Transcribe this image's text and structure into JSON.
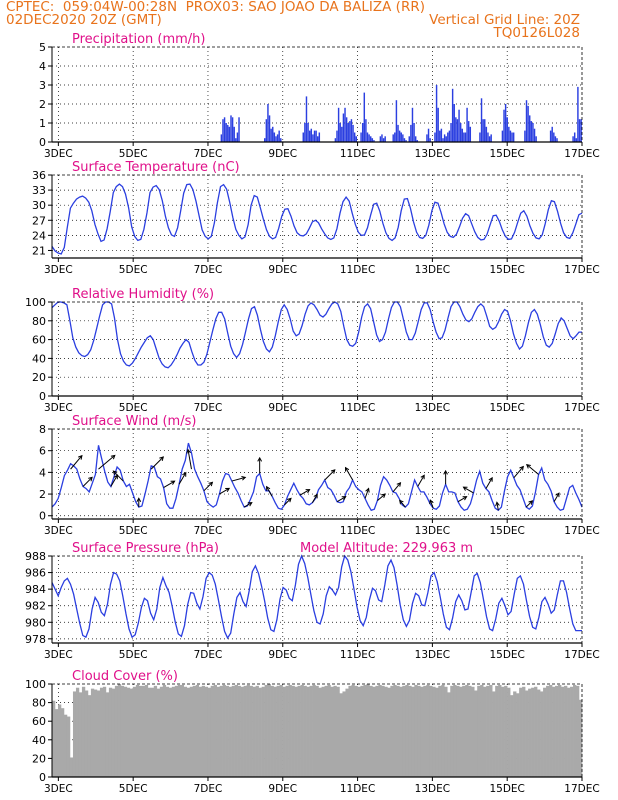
{
  "header": {
    "line1_left": "CPTEC:  059:04W-00:28N  PROX03: SAO JOAO DA BALIZA (RR)",
    "line2_left": "02DEC2020 20Z (GMT)",
    "line2_right": "Vertical Grid Line: 20Z",
    "line3_right": "TQ0126L028"
  },
  "x_ticks": [
    "3DEC",
    "5DEC",
    "7DEC",
    "9DEC",
    "11DEC",
    "13DEC",
    "15DEC",
    "17DEC"
  ],
  "colors": {
    "header": "#e8731c",
    "title": "#e0108a",
    "series": "#2b3fe0",
    "cloud": "#a9a9a9",
    "arrow": "#000000"
  },
  "chart_data": [
    {
      "type": "bar",
      "title": "Precipitation (mm/h)",
      "ylim": [
        0,
        5
      ],
      "yticks": [
        0,
        1,
        2,
        3,
        4,
        5
      ],
      "x_range_days": [
        2.83,
        17.0
      ],
      "values": [
        0,
        0,
        0,
        0,
        0,
        0,
        0,
        0,
        0,
        0,
        0,
        0,
        0,
        0,
        0,
        0,
        0,
        0,
        0,
        0,
        0,
        0,
        0,
        0,
        0,
        0,
        0,
        0,
        0,
        0,
        0,
        0,
        0,
        0,
        0,
        0,
        0,
        0,
        0,
        0,
        0,
        0,
        0,
        0,
        0,
        0,
        0,
        0,
        0,
        0,
        0,
        0,
        0,
        0,
        0,
        0,
        0,
        0,
        0,
        0,
        0,
        0,
        0,
        0,
        0,
        0,
        0,
        0,
        0,
        0,
        0,
        0,
        0,
        0,
        0,
        0,
        0,
        0,
        0,
        0,
        0,
        0,
        0,
        0,
        0,
        0,
        0,
        0,
        0,
        0,
        0,
        0,
        0,
        0,
        0,
        0,
        0,
        0,
        0,
        0,
        0,
        0,
        0,
        0,
        0,
        0.4,
        1.2,
        1.3,
        1.0,
        0.9,
        0.8,
        1.4,
        1.3,
        0.8,
        0.2,
        0.5,
        1.3,
        0,
        0,
        0,
        0,
        0,
        0,
        0,
        0,
        0,
        0,
        0,
        0,
        0,
        0,
        0,
        0.2,
        1.2,
        2.0,
        1.4,
        0.7,
        0.8,
        0.5,
        0.3,
        0.4,
        0.6,
        0.2,
        0,
        0,
        0,
        0,
        0,
        0,
        0,
        0,
        0,
        0,
        0,
        0,
        0,
        0.5,
        1.0,
        2.4,
        1.0,
        0.6,
        0.7,
        0.4,
        0.6,
        0.6,
        0.3,
        0.5,
        0,
        0,
        0,
        0,
        0,
        0,
        0,
        0,
        0,
        0.2,
        0.6,
        1.8,
        1.0,
        0.8,
        1.5,
        1.8,
        1.3,
        1.0,
        1.1,
        1.2,
        0.9,
        0.5,
        0.3,
        0,
        0,
        0.5,
        1.0,
        2.6,
        1.2,
        0.5,
        0.4,
        0.3,
        0.2,
        0.1,
        0,
        0,
        0,
        0.3,
        0.4,
        0.2,
        0.3,
        0,
        0,
        0,
        0,
        0.4,
        0.5,
        2.2,
        0.9,
        0.6,
        0.5,
        0.4,
        0.2,
        0.1,
        0,
        0.3,
        0.9,
        1.8,
        1.0,
        0.3,
        0.1,
        0,
        0,
        0,
        0,
        0,
        0.4,
        0.7,
        0.2,
        0,
        0,
        0.5,
        3.0,
        1.8,
        0.6,
        0.7,
        0.2,
        0.4,
        0.3,
        0.5,
        0.6,
        1.0,
        2.8,
        2.0,
        1.3,
        1.2,
        1.7,
        1.0,
        0.7,
        0.5,
        0.5,
        1.8,
        1.1,
        0.8,
        0,
        0,
        0,
        0,
        0,
        0.5,
        2.3,
        1.2,
        1.2,
        0.8,
        0.5,
        0.3,
        0.4,
        0,
        0,
        0,
        0,
        0,
        0,
        0.6,
        1.7,
        2.0,
        1.3,
        0.8,
        0.6,
        0.5,
        0.5,
        0,
        0,
        0,
        0,
        0,
        0,
        0.6,
        2.2,
        1.9,
        1.4,
        1.1,
        1.0,
        0.7,
        0.3,
        0,
        0,
        0,
        0,
        0,
        0,
        0,
        0,
        0.6,
        0.8,
        0.5,
        0.3,
        0.2,
        0,
        0,
        0,
        0,
        0,
        0,
        0,
        0,
        0,
        0.3,
        0.5,
        0.2,
        2.9,
        1.2,
        1.2
      ]
    },
    {
      "type": "line",
      "title": "Surface Temperature (nC)",
      "ylim": [
        19.5,
        36
      ],
      "yticks": [
        21,
        24,
        27,
        30,
        33,
        36
      ],
      "x_range_days": [
        2.83,
        17.0
      ],
      "values": [
        21.8,
        20.9,
        20.5,
        20.3,
        21.6,
        25.6,
        29.4,
        30.4,
        31.2,
        31.6,
        31.8,
        31.4,
        30.6,
        28.9,
        26.2,
        24.3,
        22.8,
        23.1,
        25.3,
        28.7,
        32.5,
        33.7,
        34.2,
        33.7,
        32.2,
        29.5,
        25.7,
        23.8,
        23.0,
        23.2,
        25.2,
        28.5,
        32.5,
        33.6,
        33.9,
        33.1,
        30.9,
        27.8,
        25.5,
        24.1,
        23.8,
        25.5,
        28.9,
        32.4,
        34.1,
        34.2,
        33.1,
        30.8,
        27.9,
        25.1,
        23.8,
        23.3,
        23.8,
        26.5,
        30.5,
        33.7,
        34.1,
        33.2,
        30.6,
        27.6,
        25.2,
        24.0,
        23.3,
        23.7,
        26.1,
        30.0,
        31.9,
        31.6,
        29.5,
        27.2,
        25.1,
        23.8,
        23.3,
        23.6,
        25.4,
        27.8,
        29.2,
        29.3,
        27.8,
        25.9,
        24.5,
        24.0,
        23.9,
        24.3,
        25.4,
        26.7,
        27.0,
        26.5,
        25.3,
        24.3,
        23.5,
        23.2,
        23.5,
        25.3,
        28.4,
        30.7,
        31.6,
        30.8,
        28.4,
        26.2,
        24.6,
        24.0,
        24.1,
        25.5,
        28.0,
        30.2,
        30.4,
        28.8,
        26.4,
        24.5,
        23.4,
        23.0,
        23.5,
        25.6,
        28.9,
        31.2,
        31.3,
        29.4,
        26.7,
        24.6,
        23.6,
        23.4,
        24.0,
        26.0,
        28.9,
        30.6,
        30.4,
        28.5,
        26.3,
        24.6,
        23.8,
        23.6,
        24.2,
        25.7,
        27.4,
        28.3,
        27.9,
        26.3,
        24.7,
        23.6,
        23.1,
        23.2,
        24.2,
        26.1,
        27.9,
        28.0,
        26.8,
        25.1,
        23.8,
        23.2,
        23.3,
        24.6,
        26.6,
        28.4,
        28.9,
        27.8,
        25.9,
        24.4,
        23.5,
        23.3,
        24.1,
        26.3,
        29.1,
        30.9,
        30.7,
        28.8,
        26.4,
        24.5,
        23.6,
        23.4,
        24.5,
        26.3,
        28.1,
        28.4
      ]
    },
    {
      "type": "line",
      "title": "Relative Humidity (%)",
      "ylim": [
        0,
        100
      ],
      "yticks": [
        0,
        20,
        40,
        60,
        80,
        100
      ],
      "x_range_days": [
        2.83,
        17.0
      ],
      "values": [
        94,
        97,
        100,
        100,
        99,
        97,
        80,
        62,
        52,
        46,
        43,
        42,
        44,
        49,
        59,
        72,
        85,
        97,
        100,
        100,
        98,
        83,
        60,
        45,
        37,
        33,
        32,
        35,
        40,
        46,
        52,
        57,
        62,
        64,
        60,
        50,
        40,
        34,
        31,
        30,
        33,
        38,
        44,
        51,
        56,
        60,
        57,
        47,
        38,
        33,
        33,
        36,
        44,
        57,
        70,
        82,
        89,
        89,
        82,
        67,
        53,
        45,
        41,
        45,
        55,
        68,
        82,
        93,
        95,
        86,
        71,
        58,
        50,
        47,
        52,
        64,
        79,
        92,
        97,
        92,
        82,
        69,
        64,
        66,
        75,
        87,
        96,
        99,
        97,
        92,
        86,
        84,
        87,
        93,
        98,
        100,
        98,
        90,
        74,
        60,
        54,
        53,
        56,
        68,
        84,
        95,
        98,
        93,
        79,
        65,
        58,
        60,
        68,
        82,
        94,
        100,
        100,
        95,
        82,
        68,
        60,
        60,
        67,
        79,
        92,
        99,
        99,
        92,
        79,
        68,
        61,
        62,
        70,
        83,
        95,
        100,
        100,
        95,
        87,
        81,
        79,
        82,
        89,
        95,
        98,
        95,
        85,
        74,
        71,
        73,
        79,
        87,
        92,
        90,
        80,
        66,
        56,
        50,
        53,
        64,
        78,
        89,
        92,
        87,
        76,
        63,
        54,
        52,
        56,
        66,
        77,
        83,
        80,
        72,
        64,
        61,
        64,
        68,
        68
      ]
    },
    {
      "type": "line",
      "title": "Surface Wind (m/s)",
      "ylim": [
        -0.3,
        8
      ],
      "yticks": [
        0,
        2,
        4,
        6,
        8
      ],
      "x_range_days": [
        2.83,
        17.0
      ],
      "values": [
        0.8,
        1.1,
        1.6,
        2.6,
        3.7,
        4.2,
        4.8,
        4.6,
        4.3,
        3.4,
        2.7,
        2.5,
        2.2,
        3.0,
        3.8,
        6.5,
        5.3,
        4.1,
        3.1,
        2.7,
        3.6,
        4.5,
        4.2,
        3.2,
        2.7,
        2.9,
        2.1,
        1.3,
        0.8,
        0.9,
        2.0,
        3.2,
        4.6,
        4.5,
        3.6,
        3.4,
        2.6,
        1.1,
        0.7,
        0.7,
        1.6,
        2.9,
        4.3,
        5.1,
        6.7,
        5.8,
        4.3,
        3.6,
        3.0,
        2.3,
        1.3,
        1.0,
        0.8,
        1.0,
        2.0,
        3.2,
        3.9,
        3.8,
        3.2,
        2.6,
        2.1,
        1.4,
        0.8,
        0.9,
        1.5,
        2.2,
        3.6,
        3.9,
        2.9,
        2.3,
        2.3,
        1.8,
        1.2,
        0.7,
        0.6,
        1.0,
        1.8,
        2.4,
        3.0,
        2.4,
        1.9,
        1.6,
        1.1,
        1.0,
        1.2,
        1.6,
        2.4,
        2.8,
        3.3,
        2.6,
        2.4,
        1.9,
        1.3,
        1.2,
        1.3,
        2.2,
        2.6,
        3.3,
        2.7,
        2.4,
        2.2,
        1.6,
        1.0,
        0.5,
        0.6,
        1.4,
        2.8,
        3.6,
        3.3,
        2.8,
        2.2,
        2.1,
        1.6,
        1.0,
        0.8,
        1.1,
        2.2,
        3.3,
        2.7,
        2.2,
        2.2,
        1.7,
        1.1,
        0.7,
        0.6,
        0.9,
        2.1,
        2.9,
        2.2,
        2.2,
        2.1,
        1.3,
        0.8,
        0.5,
        0.6,
        1.1,
        2.1,
        3.3,
        4.1,
        3.0,
        2.5,
        2.2,
        1.4,
        0.7,
        0.5,
        0.8,
        2.3,
        3.6,
        4.2,
        3.5,
        2.8,
        2.4,
        1.6,
        0.8,
        0.6,
        0.9,
        2.2,
        3.8,
        4.4,
        3.3,
        2.9,
        2.3,
        1.3,
        0.8,
        0.5,
        0.6,
        1.6,
        2.6,
        2.8,
        2.1,
        1.5,
        0.8
      ]
    },
    {
      "type": "line",
      "title": "Surface Pressure (hPa)",
      "annotation": "Model Altitude: 229.963 m",
      "ylim": [
        977.5,
        988
      ],
      "yticks": [
        978,
        980,
        982,
        984,
        986,
        988
      ],
      "x_range_days": [
        2.83,
        17.0
      ],
      "values": [
        984.8,
        984.0,
        983.2,
        984.2,
        985.0,
        985.3,
        984.6,
        983.4,
        981.6,
        979.9,
        978.4,
        978.2,
        979.2,
        981.6,
        983.0,
        982.4,
        981.2,
        980.8,
        982.2,
        984.6,
        986.0,
        985.8,
        985.0,
        983.1,
        981.0,
        979.2,
        978.2,
        978.5,
        979.9,
        981.8,
        982.9,
        982.6,
        981.1,
        980.3,
        981.6,
        984.2,
        985.4,
        984.4,
        983.6,
        981.9,
        980.0,
        978.6,
        978.3,
        979.6,
        982.1,
        983.6,
        983.5,
        982.3,
        981.6,
        983.1,
        985.3,
        986.0,
        985.7,
        984.6,
        982.7,
        980.7,
        978.9,
        978.1,
        978.7,
        981.0,
        983.0,
        983.6,
        982.5,
        981.9,
        983.8,
        986.1,
        986.8,
        985.9,
        984.4,
        982.6,
        980.5,
        979.1,
        978.9,
        980.3,
        982.8,
        984.2,
        983.9,
        982.9,
        982.6,
        984.5,
        987.0,
        988.0,
        987.1,
        985.4,
        983.4,
        981.4,
        980.0,
        979.8,
        981.0,
        983.2,
        984.3,
        983.9,
        983.3,
        984.2,
        986.7,
        988.0,
        987.5,
        986.1,
        984.0,
        981.8,
        980.2,
        979.6,
        980.6,
        982.7,
        984.1,
        983.8,
        982.7,
        982.5,
        984.5,
        986.8,
        987.5,
        986.6,
        984.5,
        982.1,
        980.3,
        979.5,
        980.2,
        982.3,
        983.5,
        983.2,
        982.1,
        982.0,
        983.6,
        985.6,
        986.0,
        984.9,
        983.0,
        981.0,
        979.4,
        979.1,
        980.5,
        982.5,
        983.3,
        982.6,
        981.5,
        981.6,
        983.6,
        985.6,
        985.9,
        984.8,
        982.8,
        980.7,
        979.2,
        979.0,
        980.4,
        982.3,
        982.9,
        982.0,
        980.9,
        981.3,
        983.4,
        985.3,
        985.6,
        984.6,
        982.6,
        980.7,
        979.4,
        979.2,
        980.6,
        982.5,
        983.0,
        982.2,
        981.1,
        981.5,
        983.3,
        985.0,
        985.0,
        983.6,
        981.6,
        979.8,
        979.0,
        979.0,
        979.0
      ]
    },
    {
      "type": "area",
      "title": "Cloud Cover (%)",
      "ylim": [
        0,
        100
      ],
      "yticks": [
        0,
        20,
        40,
        60,
        80,
        100
      ],
      "x_range_days": [
        2.83,
        17.0
      ],
      "values": [
        82,
        73,
        78,
        74,
        67,
        65,
        21,
        92,
        96,
        91,
        97,
        93,
        88,
        95,
        94,
        93,
        96,
        97,
        91,
        96,
        95,
        98,
        100,
        98,
        97,
        96,
        95,
        97,
        99,
        98,
        98,
        99,
        96,
        96,
        98,
        95,
        97,
        99,
        97,
        96,
        97,
        98,
        99,
        99,
        97,
        96,
        97,
        98,
        99,
        97,
        98,
        97,
        96,
        98,
        99,
        97,
        98,
        99,
        98,
        97,
        98,
        99,
        98,
        97,
        98,
        99,
        98,
        97,
        98,
        96,
        97,
        99,
        100,
        98,
        97,
        98,
        99,
        97,
        98,
        99,
        98,
        97,
        98,
        99,
        98,
        97,
        98,
        99,
        98,
        96,
        97,
        98,
        99,
        97,
        98,
        97,
        90,
        92,
        95,
        98,
        99,
        98,
        97,
        98,
        99,
        100,
        98,
        97,
        98,
        99,
        98,
        97,
        96,
        98,
        99,
        98,
        97,
        98,
        99,
        98,
        97,
        99,
        98,
        97,
        98,
        99,
        98,
        97,
        96,
        98,
        99,
        97,
        91,
        98,
        99,
        98,
        97,
        98,
        99,
        98,
        97,
        93,
        98,
        99,
        97,
        98,
        99,
        92,
        98,
        99,
        97,
        98,
        96,
        88,
        92,
        90,
        96,
        97,
        93,
        95,
        96,
        97,
        94,
        92,
        96,
        98,
        99,
        97,
        98,
        99,
        97,
        98,
        96,
        97,
        99,
        98,
        83
      ]
    }
  ]
}
